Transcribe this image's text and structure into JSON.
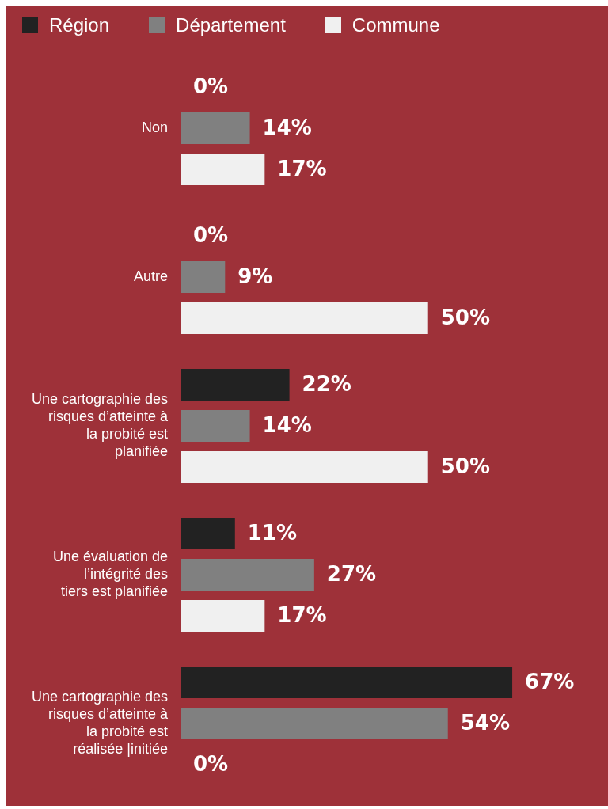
{
  "chart_data": {
    "type": "bar",
    "orientation": "horizontal",
    "legend": "top left",
    "categories": [
      "Non",
      "Autre",
      "Une cartographie des risques d’atteinte à la probité est planifiée",
      "Une évaluation de l’intégrité des tiers est planifiée",
      "Une cartographie des risques d’atteinte à la probité est réalisée |initiée"
    ],
    "series": [
      {
        "name": "Région",
        "color": "#222222",
        "values": [
          0,
          0,
          22,
          11,
          67
        ],
        "value_labels": [
          "0%",
          "0%",
          "22%",
          "11%",
          "67%"
        ]
      },
      {
        "name": "Département",
        "color": "#808080",
        "values": [
          14,
          9,
          14,
          27,
          54
        ],
        "value_labels": [
          "14%",
          "9%",
          "14%",
          "27%",
          "54%"
        ]
      },
      {
        "name": "Commune",
        "color": "#f0f0f0",
        "values": [
          17,
          50,
          50,
          17,
          0
        ],
        "value_labels": [
          "17%",
          "50%",
          "50%",
          "17%",
          "0%"
        ]
      }
    ]
  }
}
